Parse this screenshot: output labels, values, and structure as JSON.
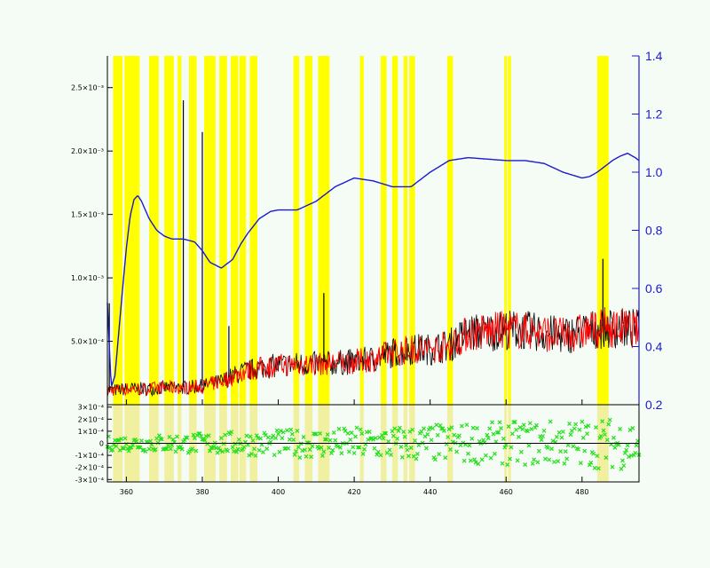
{
  "chart_data": [
    {
      "type": "line",
      "panel": "spectrum",
      "title": "",
      "xlabel": "",
      "ylabel": "",
      "xlim": [
        355,
        495
      ],
      "ylim_left": [
        0,
        2.75
      ],
      "ylim_right": [
        0.2,
        1.4
      ],
      "left_ticks": [
        {
          "value": 0.5,
          "label": "5.0×10⁻⁴"
        },
        {
          "value": 1.0,
          "label": "1.0×10⁻³"
        },
        {
          "value": 1.5,
          "label": "1.5×10⁻³"
        },
        {
          "value": 2.0,
          "label": "2.0×10⁻³"
        },
        {
          "value": 2.5,
          "label": "2.5×10⁻³"
        }
      ],
      "right_ticks": [
        "0.2",
        "0.4",
        "0.6",
        "0.8",
        "1.0",
        "1.2",
        "1.4"
      ],
      "x_ticks": [
        {
          "value": 360,
          "label": "360"
        },
        {
          "value": 380,
          "label": "380"
        },
        {
          "value": 400,
          "label": "400"
        },
        {
          "value": 420,
          "label": "420"
        },
        {
          "value": 440,
          "label": "440"
        },
        {
          "value": 460,
          "label": "460"
        },
        {
          "value": 480,
          "label": "480"
        }
      ],
      "colors": {
        "data": "#000000",
        "model": "#ff0000",
        "continuum": "#1a1ad0",
        "mask": "#ffff00"
      },
      "masked_regions": [
        [
          356.5,
          359.0
        ],
        [
          359.5,
          363.5
        ],
        [
          366.0,
          368.5
        ],
        [
          370.0,
          372.5
        ],
        [
          373.5,
          374.5
        ],
        [
          376.5,
          378.5
        ],
        [
          380.5,
          383.5
        ],
        [
          384.5,
          386.5
        ],
        [
          387.5,
          389.5
        ],
        [
          389.8,
          391.5
        ],
        [
          392.5,
          394.5
        ],
        [
          404.0,
          405.5
        ],
        [
          407.0,
          409.0
        ],
        [
          410.5,
          413.5
        ],
        [
          421.5,
          422.5
        ],
        [
          427.0,
          428.5
        ],
        [
          430.0,
          431.5
        ],
        [
          433.0,
          434.0
        ],
        [
          434.5,
          436.0
        ],
        [
          444.5,
          446.0
        ],
        [
          459.5,
          460.2
        ],
        [
          460.5,
          461.3
        ],
        [
          484.0,
          487.0
        ]
      ],
      "continuum_curve": {
        "x": [
          355,
          356,
          357,
          358,
          359,
          360,
          361,
          362,
          363,
          364,
          366,
          368,
          370,
          372,
          375,
          378,
          380,
          382,
          385,
          388,
          390,
          392,
          395,
          398,
          400,
          402,
          405,
          410,
          415,
          420,
          425,
          430,
          435,
          440,
          445,
          450,
          455,
          460,
          465,
          470,
          475,
          480,
          482,
          484,
          486,
          488,
          490,
          492,
          494,
          495
        ],
        "y": [
          0.55,
          0.26,
          0.3,
          0.45,
          0.6,
          0.74,
          0.85,
          0.905,
          0.92,
          0.9,
          0.84,
          0.8,
          0.78,
          0.77,
          0.77,
          0.76,
          0.73,
          0.69,
          0.67,
          0.7,
          0.75,
          0.79,
          0.84,
          0.865,
          0.87,
          0.87,
          0.87,
          0.9,
          0.95,
          0.98,
          0.97,
          0.95,
          0.95,
          1.0,
          1.04,
          1.05,
          1.045,
          1.04,
          1.04,
          1.03,
          1.0,
          0.98,
          0.985,
          1.0,
          1.02,
          1.04,
          1.055,
          1.065,
          1.05,
          1.04
        ]
      },
      "flux_trend": {
        "x": [
          355,
          357,
          360,
          365,
          370,
          375,
          380,
          385,
          390,
          395,
          400,
          405,
          410,
          415,
          420,
          425,
          430,
          435,
          440,
          445,
          450,
          455,
          460,
          465,
          470,
          475,
          480,
          485,
          490,
          495
        ],
        "y": [
          0.12,
          0.12,
          0.13,
          0.13,
          0.14,
          0.14,
          0.15,
          0.19,
          0.26,
          0.3,
          0.32,
          0.33,
          0.33,
          0.34,
          0.35,
          0.37,
          0.42,
          0.45,
          0.45,
          0.48,
          0.58,
          0.59,
          0.61,
          0.6,
          0.58,
          0.56,
          0.59,
          0.62,
          0.62,
          0.61
        ]
      },
      "spikes": [
        {
          "x": 355.5,
          "y": 0.8
        },
        {
          "x": 375.0,
          "y": 2.4
        },
        {
          "x": 380.0,
          "y": 2.15
        },
        {
          "x": 387.0,
          "y": 0.62
        },
        {
          "x": 412.0,
          "y": 0.88
        },
        {
          "x": 485.5,
          "y": 1.15
        }
      ]
    },
    {
      "type": "scatter",
      "panel": "residuals",
      "xlim": [
        355,
        495
      ],
      "ylim": [
        -3.2,
        3.2
      ],
      "y_ticks": [
        {
          "value": 3,
          "label": "3×10⁻⁴"
        },
        {
          "value": 2,
          "label": "2×10⁻⁴"
        },
        {
          "value": 1,
          "label": "1×10⁻⁴"
        },
        {
          "value": 0,
          "label": "0"
        },
        {
          "value": -1,
          "label": "-1×10⁻⁴"
        },
        {
          "value": -2,
          "label": "-2×10⁻⁴"
        },
        {
          "value": -3,
          "label": "-3×10⁻⁴"
        }
      ],
      "colors": {
        "residual": "#22e01a",
        "zero_line": "#000000"
      }
    }
  ]
}
